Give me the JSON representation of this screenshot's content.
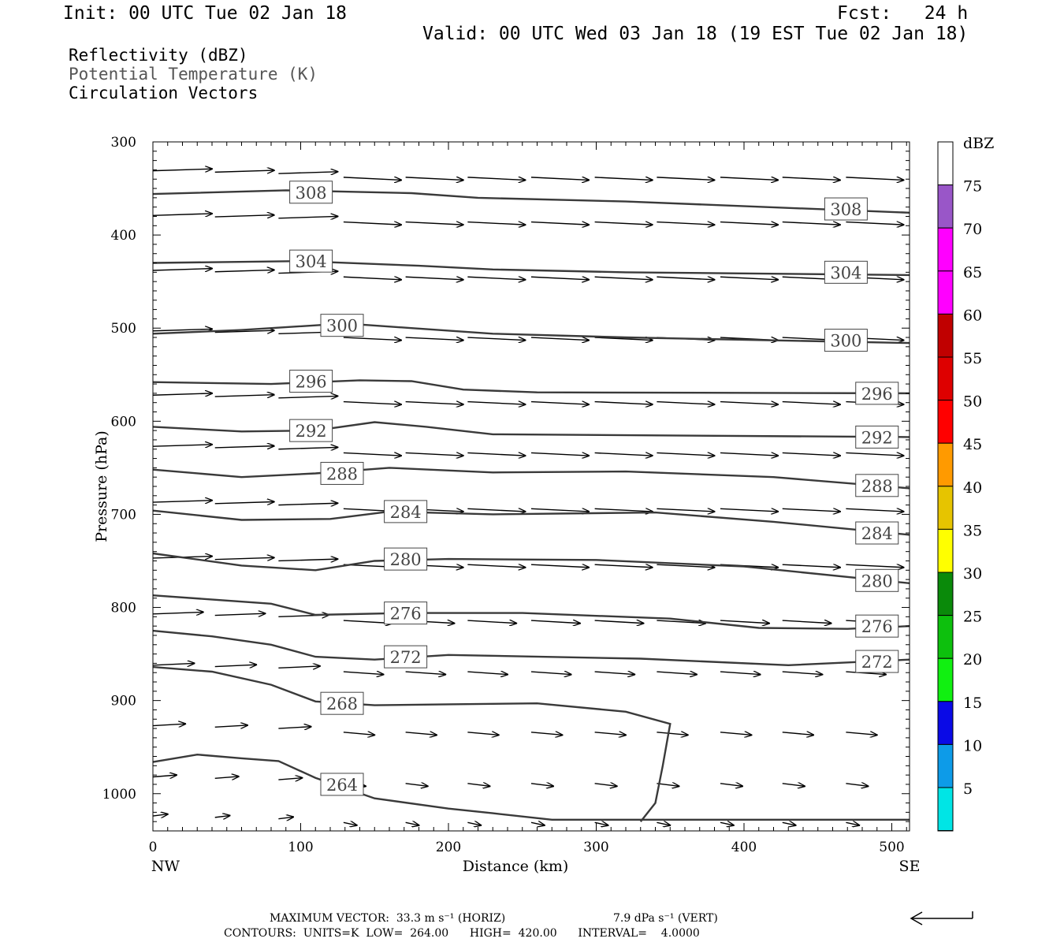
{
  "header": {
    "init": "Init: 00 UTC Tue 02 Jan 18",
    "fcst": "Fcst:   24 h",
    "valid": "Valid: 00 UTC Wed 03 Jan 18 (19 EST Tue 02 Jan 18)"
  },
  "legend": {
    "reflectivity": "Reflectivity (dBZ)",
    "potential_temperature": "Potential Temperature (K)",
    "circulation": "Circulation Vectors"
  },
  "colorbar": {
    "title": "dBZ",
    "levels": [
      "5",
      "10",
      "15",
      "20",
      "25",
      "30",
      "35",
      "40",
      "45",
      "50",
      "55",
      "60",
      "65",
      "70",
      "75"
    ],
    "colors": [
      "#00e5e5",
      "#0d9be8",
      "#0a0ae6",
      "#11f011",
      "#0dc00d",
      "#0a8a0a",
      "#ffff00",
      "#e6c400",
      "#ff9a00",
      "#ff0000",
      "#de0000",
      "#c00000",
      "#ff00ff",
      "#ff00ff",
      "#9956c8"
    ]
  },
  "footer": {
    "max_vector": "MAXIMUM VECTOR:  33.3 m s⁻¹ (HORIZ)",
    "max_vector_vert": "7.9 dPa s⁻¹ (VERT)",
    "contours": "CONTOURS:  UNITS=K  LOW=  264.00      HIGH=  420.00      INTERVAL=    4.0000"
  },
  "chart_data": {
    "type": "cross-section",
    "xlabel": "Distance (km)",
    "ylabel": "Pressure (hPa)",
    "xlim": [
      0,
      512
    ],
    "ylim": [
      300,
      1040
    ],
    "x_ticks": [
      0,
      100,
      200,
      300,
      400,
      500
    ],
    "y_ticks": [
      300,
      400,
      500,
      600,
      700,
      800,
      900,
      1000
    ],
    "x_end_labels": [
      "NW",
      "SE"
    ],
    "theta_contours": [
      {
        "theta": "308",
        "points": [
          [
            0,
            356
          ],
          [
            90,
            352
          ],
          [
            175,
            355
          ],
          [
            220,
            360
          ],
          [
            320,
            364
          ],
          [
            512,
            376
          ]
        ],
        "labels": [
          [
            107,
            354
          ],
          [
            469,
            372
          ]
        ]
      },
      {
        "theta": "304",
        "points": [
          [
            0,
            430
          ],
          [
            100,
            428
          ],
          [
            180,
            433
          ],
          [
            230,
            437
          ],
          [
            320,
            440
          ],
          [
            512,
            443
          ]
        ],
        "labels": [
          [
            107,
            428
          ],
          [
            469,
            440
          ]
        ]
      },
      {
        "theta": "300",
        "points": [
          [
            0,
            506
          ],
          [
            60,
            502
          ],
          [
            130,
            495
          ],
          [
            175,
            500
          ],
          [
            230,
            506
          ],
          [
            320,
            510
          ],
          [
            512,
            516
          ]
        ],
        "labels": [
          [
            128,
            497
          ],
          [
            469,
            513
          ]
        ]
      },
      {
        "theta": "296",
        "points": [
          [
            0,
            558
          ],
          [
            80,
            560
          ],
          [
            140,
            556
          ],
          [
            175,
            557
          ],
          [
            210,
            566
          ],
          [
            260,
            569
          ],
          [
            512,
            570
          ]
        ],
        "labels": [
          [
            107,
            557
          ],
          [
            490,
            570
          ]
        ]
      },
      {
        "theta": "292",
        "points": [
          [
            0,
            606
          ],
          [
            60,
            611
          ],
          [
            110,
            610
          ],
          [
            150,
            601
          ],
          [
            185,
            606
          ],
          [
            230,
            614
          ],
          [
            512,
            617
          ]
        ],
        "labels": [
          [
            107,
            610
          ],
          [
            490,
            617
          ]
        ]
      },
      {
        "theta": "288",
        "points": [
          [
            0,
            652
          ],
          [
            60,
            660
          ],
          [
            110,
            656
          ],
          [
            160,
            650
          ],
          [
            230,
            655
          ],
          [
            320,
            654
          ],
          [
            420,
            660
          ],
          [
            512,
            672
          ]
        ],
        "labels": [
          [
            128,
            656
          ],
          [
            490,
            669
          ]
        ]
      },
      {
        "theta": "284",
        "points": [
          [
            0,
            696
          ],
          [
            60,
            706
          ],
          [
            120,
            705
          ],
          [
            160,
            697
          ],
          [
            230,
            700
          ],
          [
            340,
            698
          ],
          [
            420,
            708
          ],
          [
            512,
            722
          ]
        ],
        "labels": [
          [
            171,
            697
          ],
          [
            490,
            720
          ]
        ]
      },
      {
        "theta": "280",
        "points": [
          [
            0,
            742
          ],
          [
            60,
            755
          ],
          [
            110,
            760
          ],
          [
            150,
            750
          ],
          [
            200,
            748
          ],
          [
            300,
            749
          ],
          [
            400,
            756
          ],
          [
            512,
            774
          ]
        ],
        "labels": [
          [
            171,
            748
          ],
          [
            490,
            771
          ]
        ]
      },
      {
        "theta": "276",
        "points": [
          [
            0,
            787
          ],
          [
            80,
            796
          ],
          [
            110,
            808
          ],
          [
            170,
            806
          ],
          [
            250,
            806
          ],
          [
            350,
            812
          ],
          [
            410,
            822
          ],
          [
            470,
            823
          ],
          [
            512,
            820
          ]
        ],
        "labels": [
          [
            171,
            806
          ],
          [
            490,
            820
          ]
        ]
      },
      {
        "theta": "272",
        "points": [
          [
            0,
            825
          ],
          [
            40,
            831
          ],
          [
            80,
            840
          ],
          [
            110,
            853
          ],
          [
            150,
            856
          ],
          [
            200,
            851
          ],
          [
            330,
            855
          ],
          [
            430,
            862
          ],
          [
            512,
            856
          ]
        ],
        "labels": [
          [
            171,
            853
          ],
          [
            490,
            858
          ]
        ]
      },
      {
        "theta": "268",
        "points": [
          [
            0,
            864
          ],
          [
            40,
            869
          ],
          [
            80,
            883
          ],
          [
            110,
            901
          ],
          [
            150,
            905
          ],
          [
            200,
            904
          ],
          [
            260,
            903
          ],
          [
            320,
            912
          ],
          [
            350,
            925
          ],
          [
            345,
            970
          ],
          [
            340,
            1010
          ],
          [
            330,
            1030
          ]
        ],
        "labels": [
          [
            128,
            903
          ]
        ]
      },
      {
        "theta": "264",
        "points": [
          [
            0,
            966
          ],
          [
            30,
            958
          ],
          [
            60,
            962
          ],
          [
            85,
            965
          ],
          [
            110,
            983
          ],
          [
            150,
            1005
          ],
          [
            200,
            1016
          ],
          [
            230,
            1021
          ],
          [
            270,
            1028
          ],
          [
            512,
            1028
          ]
        ],
        "labels": [
          [
            128,
            990
          ]
        ]
      }
    ]
  }
}
